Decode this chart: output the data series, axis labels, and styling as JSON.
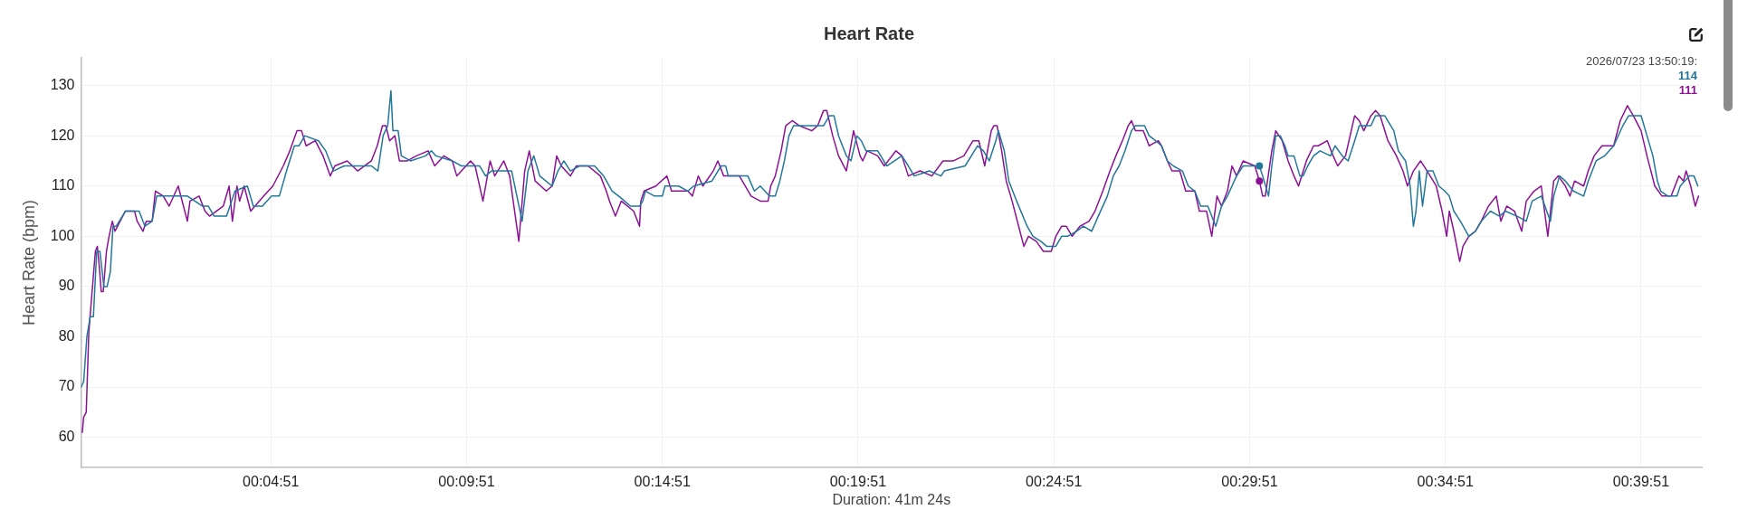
{
  "chart_data": {
    "type": "line",
    "title": "Heart Rate",
    "xlabel": "Duration: 41m 24s",
    "ylabel": "Heart Rate (bpm)",
    "xlim": [
      0,
      2484
    ],
    "xticks": [
      {
        "value": 291,
        "label": "00:04:51"
      },
      {
        "value": 591,
        "label": "00:09:51"
      },
      {
        "value": 891,
        "label": "00:14:51"
      },
      {
        "value": 1191,
        "label": "00:19:51"
      },
      {
        "value": 1491,
        "label": "00:24:51"
      },
      {
        "value": 1791,
        "label": "00:29:51"
      },
      {
        "value": 2091,
        "label": "00:34:51"
      },
      {
        "value": 2391,
        "label": "00:39:51"
      }
    ],
    "ylim": [
      54,
      135.5
    ],
    "yticks": [
      60,
      70,
      80,
      90,
      100,
      110,
      120,
      130
    ],
    "grid": true,
    "line_style": "solid",
    "annotations": [
      "2026/07/23 13:50:19:",
      "114",
      "111"
    ],
    "series": [
      {
        "color": "#23779b",
        "x": [
          0,
          4,
          9,
          14,
          19,
          24,
          29,
          35,
          40,
          45,
          49,
          54,
          68,
          89,
          98,
          109,
          116,
          139,
          163,
          186,
          195,
          204,
          223,
          236,
          255,
          264,
          278,
          292,
          304,
          315,
          327,
          334,
          343,
          364,
          375,
          387,
          403,
          445,
          455,
          463,
          470,
          475,
          478,
          486,
          491,
          505,
          528,
          537,
          544,
          569,
          583,
          611,
          620,
          629,
          648,
          660,
          676,
          685,
          694,
          703,
          722,
          731,
          740,
          750,
          764,
          787,
          801,
          814,
          824,
          833,
          842,
          856,
          861,
          865,
          879,
          891,
          895,
          916,
          930,
          939,
          967,
          981,
          988,
          992,
          1022,
          1032,
          1041,
          1055,
          1064,
          1071,
          1078,
          1085,
          1092,
          1138,
          1147,
          1154,
          1161,
          1173,
          1180,
          1189,
          1196,
          1203,
          1221,
          1235,
          1258,
          1268,
          1277,
          1300,
          1318,
          1323,
          1355,
          1374,
          1383,
          1392,
          1402,
          1406,
          1415,
          1422,
          1434,
          1450,
          1459,
          1471,
          1480,
          1494,
          1503,
          1512,
          1526,
          1536,
          1549,
          1559,
          1573,
          1582,
          1591,
          1600,
          1610,
          1616,
          1630,
          1637,
          1647,
          1656,
          1665,
          1674,
          1688,
          1697,
          1707,
          1716,
          1727,
          1739,
          1748,
          1757,
          1764,
          1771,
          1781,
          1806,
          1811,
          1820,
          1825,
          1831,
          1838,
          1845,
          1850,
          1859,
          1868,
          1873,
          1880,
          1889,
          1899,
          1915,
          1922,
          1933,
          1942,
          1952,
          1959,
          1977,
          1984,
          1998,
          2012,
          2019,
          2030,
          2037,
          2042,
          2046,
          2051,
          2056,
          2063,
          2072,
          2081,
          2090,
          2097,
          2104,
          2114,
          2127,
          2137,
          2146,
          2160,
          2174,
          2183,
          2201,
          2215,
          2224,
          2238,
          2252,
          2257,
          2266,
          2275,
          2287,
          2303,
          2310,
          2322,
          2335,
          2349,
          2363,
          2372,
          2391,
          2400,
          2409,
          2416,
          2421,
          2432,
          2446,
          2451,
          2465,
          2472,
          2478
        ],
        "values": [
          70,
          71,
          80,
          84,
          84,
          97,
          97,
          90,
          90,
          93,
          102,
          102,
          105,
          105,
          102,
          103,
          108,
          108,
          108,
          106,
          106,
          104,
          104,
          109,
          110,
          106,
          106,
          108,
          108,
          113,
          118,
          118,
          120,
          119,
          117,
          113,
          114,
          114,
          113,
          120,
          122,
          129,
          121,
          121,
          116,
          115,
          116,
          117,
          116,
          115,
          114,
          114,
          112,
          113,
          113,
          113,
          103,
          113,
          116,
          112,
          110,
          113,
          115,
          113,
          114,
          114,
          112,
          109,
          108,
          107,
          106,
          106,
          107,
          109,
          108,
          108,
          110,
          110,
          109,
          110,
          111,
          114,
          114,
          112,
          112,
          109,
          110,
          108,
          108,
          111,
          115,
          120,
          122,
          122,
          124,
          124,
          120,
          116,
          115,
          120,
          119,
          117,
          117,
          114,
          116,
          114,
          112,
          113,
          112,
          113,
          114,
          118,
          117,
          115,
          119,
          121,
          117,
          111,
          107,
          102,
          100,
          99,
          98,
          98,
          100,
          100,
          101,
          102,
          101,
          104,
          108,
          112,
          114,
          117,
          121,
          122,
          122,
          120,
          119,
          118,
          115,
          114,
          113,
          110,
          109,
          106,
          106,
          102,
          106,
          108,
          110,
          112,
          114,
          114,
          112,
          108,
          114,
          120,
          120,
          118,
          116,
          116,
          112,
          112,
          114,
          116,
          117,
          116,
          118,
          116,
          115,
          119,
          122,
          122,
          124,
          124,
          121,
          117,
          115,
          110,
          102,
          105,
          113,
          106,
          113,
          113,
          110,
          109,
          108,
          105,
          103,
          100,
          101,
          103,
          105,
          104,
          105,
          104,
          103,
          107,
          108,
          103,
          108,
          112,
          111,
          109,
          108,
          111,
          115,
          116,
          118,
          122,
          124,
          124,
          120,
          116,
          111,
          109,
          108,
          108,
          110,
          112,
          112,
          110
        ]
      },
      {
        "color": "#8b1295",
        "x": [
          2,
          4,
          8,
          12,
          17,
          22,
          25,
          28,
          31,
          34,
          39,
          43,
          48,
          52,
          56,
          68,
          82,
          86,
          95,
          100,
          109,
          114,
          126,
          135,
          149,
          163,
          167,
          181,
          190,
          197,
          218,
          227,
          232,
          239,
          243,
          250,
          260,
          280,
          294,
          310,
          320,
          331,
          338,
          345,
          359,
          371,
          382,
          389,
          408,
          424,
          445,
          454,
          462,
          467,
          473,
          481,
          488,
          500,
          514,
          532,
          542,
          556,
          569,
          576,
          597,
          604,
          616,
          627,
          634,
          648,
          657,
          671,
          680,
          687,
          696,
          713,
          722,
          729,
          736,
          750,
          759,
          777,
          796,
          805,
          810,
          819,
          828,
          847,
          856,
          858,
          863,
          881,
          898,
          905,
          930,
          937,
          946,
          953,
          969,
          976,
          985,
          1009,
          1027,
          1041,
          1053,
          1057,
          1064,
          1073,
          1080,
          1090,
          1101,
          1120,
          1129,
          1138,
          1143,
          1152,
          1161,
          1173,
          1184,
          1194,
          1198,
          1205,
          1221,
          1231,
          1249,
          1258,
          1268,
          1286,
          1304,
          1321,
          1337,
          1353,
          1367,
          1376,
          1385,
          1395,
          1399,
          1404,
          1411,
          1418,
          1427,
          1439,
          1445,
          1452,
          1464,
          1475,
          1487,
          1494,
          1503,
          1510,
          1519,
          1531,
          1545,
          1554,
          1566,
          1577,
          1586,
          1596,
          1605,
          1610,
          1616,
          1628,
          1637,
          1651,
          1656,
          1665,
          1672,
          1684,
          1693,
          1707,
          1714,
          1725,
          1733,
          1741,
          1748,
          1757,
          1764,
          1771,
          1781,
          1799,
          1806,
          1811,
          1815,
          1825,
          1831,
          1841,
          1850,
          1859,
          1866,
          1878,
          1889,
          1896,
          1910,
          1919,
          1926,
          1938,
          1952,
          1959,
          1966,
          1977,
          1984,
          1991,
          2003,
          2016,
          2026,
          2033,
          2042,
          2053,
          2063,
          2077,
          2086,
          2093,
          2097,
          2104,
          2113,
          2118,
          2127,
          2137,
          2146,
          2157,
          2169,
          2176,
          2185,
          2197,
          2208,
          2215,
          2227,
          2238,
          2248,
          2257,
          2264,
          2275,
          2282,
          2289,
          2303,
          2310,
          2319,
          2331,
          2349,
          2359,
          2370,
          2379,
          2391,
          2400,
          2412,
          2423,
          2437,
          2449,
          2456,
          2460,
          2467,
          2474,
          2479
        ],
        "values": [
          61,
          64,
          65,
          81,
          89,
          97,
          98,
          94,
          89,
          89,
          97,
          100,
          103,
          101,
          102,
          105,
          105,
          103,
          101,
          103,
          103,
          109,
          108,
          106,
          110,
          103,
          107,
          108,
          105,
          104,
          106,
          110,
          103,
          110,
          107,
          110,
          105,
          108,
          110,
          114,
          117,
          121,
          121,
          118,
          119,
          116,
          112,
          114,
          115,
          113,
          115,
          118,
          122,
          122,
          119,
          120,
          115,
          115,
          116,
          117,
          114,
          116,
          115,
          112,
          115,
          114,
          107,
          115,
          112,
          115,
          112,
          99,
          113,
          117,
          111,
          109,
          110,
          116,
          114,
          112,
          114,
          114,
          112,
          109,
          107,
          104,
          107,
          105,
          102,
          107,
          109,
          110,
          112,
          109,
          109,
          108,
          112,
          110,
          113,
          115,
          112,
          112,
          108,
          107,
          107,
          110,
          112,
          117,
          122,
          123,
          122,
          121,
          122,
          125,
          125,
          120,
          116,
          113,
          121,
          116,
          115,
          117,
          116,
          114,
          117,
          116,
          112,
          113,
          112,
          115,
          115,
          116,
          119,
          119,
          114,
          121,
          122,
          122,
          117,
          111,
          107,
          101,
          98,
          100,
          99,
          97,
          97,
          100,
          102,
          102,
          100,
          102,
          103,
          105,
          109,
          113,
          116,
          119,
          122,
          123,
          121,
          121,
          118,
          119,
          118,
          115,
          113,
          113,
          109,
          109,
          105,
          105,
          100,
          108,
          106,
          109,
          114,
          112,
          115,
          114,
          111,
          108,
          108,
          117,
          121,
          119,
          115,
          112,
          110,
          115,
          118,
          118,
          119,
          116,
          114,
          116,
          124,
          123,
          121,
          124,
          125,
          124,
          119,
          116,
          113,
          110,
          113,
          115,
          113,
          110,
          105,
          100,
          105,
          101,
          95,
          98,
          100,
          101,
          103,
          106,
          108,
          103,
          106,
          105,
          101,
          107,
          109,
          110,
          100,
          111,
          112,
          110,
          108,
          111,
          110,
          113,
          116,
          118,
          118,
          123,
          126,
          124,
          121,
          116,
          110,
          108,
          108,
          112,
          111,
          113,
          110,
          106,
          108
        ]
      },
      {
        "type": "scatter",
        "color": "#23779b",
        "x": [
          1806
        ],
        "values": [
          114
        ]
      },
      {
        "type": "scatter",
        "color": "#8b1295",
        "x": [
          1806
        ],
        "values": [
          111
        ]
      }
    ]
  }
}
